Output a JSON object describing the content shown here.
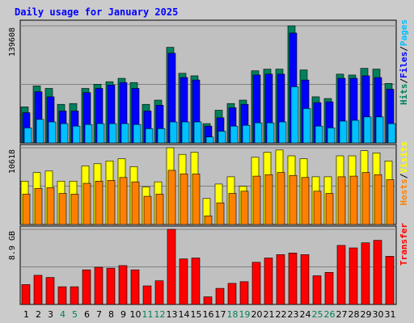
{
  "chart_data": {
    "title": "Daily usage for January 2025",
    "days": [
      "1",
      "2",
      "3",
      "4",
      "5",
      "6",
      "7",
      "8",
      "9",
      "10",
      "11",
      "12",
      "13",
      "14",
      "15",
      "16",
      "17",
      "18",
      "19",
      "20",
      "21",
      "22",
      "23",
      "24",
      "25",
      "26",
      "27",
      "28",
      "29",
      "30",
      "31"
    ],
    "weekend_days": [
      "4",
      "5",
      "11",
      "12",
      "18",
      "19",
      "25",
      "26"
    ],
    "colors": {
      "hits": "#00805c",
      "files": "#0000ff",
      "pages": "#00c0ff",
      "visits": "#ffff00",
      "hosts": "#ff8000",
      "transfer": "#ff0000",
      "weekday_label": "#000000",
      "weekend_label": "#00805c",
      "background": "#cbcbcb",
      "panel_background": "#c0c0c0"
    },
    "panels": [
      {
        "type": "bar",
        "axis_label": "139608",
        "axis_max": 139608,
        "side_labels": [
          {
            "text": "Hits",
            "color": "#00805c"
          },
          {
            "text": "/",
            "color": "#000000"
          },
          {
            "text": "Files",
            "color": "#0000ff"
          },
          {
            "text": "/",
            "color": "#000000"
          },
          {
            "text": "Pages",
            "color": "#00c0ff"
          }
        ],
        "series": [
          {
            "name": "Hits",
            "color": "#00805c",
            "values": [
              43000,
              68000,
              65000,
              46000,
              47000,
              65000,
              70000,
              73000,
              77000,
              72000,
              46000,
              51000,
              114000,
              83000,
              80000,
              23000,
              39000,
              47000,
              51000,
              86000,
              88000,
              88000,
              139608,
              87000,
              55000,
              53000,
              82000,
              81000,
              89000,
              88000,
              71000
            ]
          },
          {
            "name": "Files",
            "color": "#0000ff",
            "values": [
              36000,
              61000,
              55000,
              38000,
              38000,
              60000,
              65000,
              69000,
              72000,
              65000,
              38000,
              45000,
              107000,
              78000,
              75000,
              20000,
              30000,
              42000,
              46000,
              81000,
              82000,
              82000,
              131000,
              75000,
              48000,
              49000,
              77000,
              77000,
              80000,
              78000,
              64000
            ]
          },
          {
            "name": "Pages",
            "color": "#00c0ff",
            "values": [
              18000,
              28000,
              25000,
              23000,
              20000,
              22000,
              23000,
              23000,
              23000,
              22000,
              17000,
              17000,
              25000,
              25000,
              25000,
              7000,
              14000,
              20000,
              21000,
              24000,
              24000,
              25000,
              67000,
              41000,
              20000,
              18000,
              26000,
              27000,
              31000,
              31000,
              23000
            ]
          }
        ]
      },
      {
        "type": "bar",
        "axis_label": "10618",
        "axis_max": 10618,
        "side_labels": [
          {
            "text": "Hosts",
            "color": "#ff8000"
          },
          {
            "text": "/",
            "color": "#000000"
          },
          {
            "text": "Visits",
            "color": "#ffff00"
          }
        ],
        "series": [
          {
            "name": "Visits",
            "color": "#ffff00",
            "values": [
              6000,
              7200,
              7400,
              6000,
              6000,
              8100,
              8400,
              8800,
              9100,
              8000,
              5200,
              5900,
              10618,
              9700,
              10000,
              3600,
              5600,
              6600,
              5300,
              9300,
              10000,
              10300,
              9500,
              9100,
              6600,
              6600,
              9500,
              9500,
              10200,
              9900,
              8800
            ]
          },
          {
            "name": "Hosts",
            "color": "#ff8000",
            "values": [
              4200,
              5000,
              5100,
              4300,
              4200,
              5700,
              6000,
              6100,
              6500,
              5900,
              3900,
              4200,
              7500,
              7000,
              7000,
              1200,
              3000,
              4300,
              4600,
              6700,
              6900,
              7200,
              6800,
              6500,
              4600,
              4300,
              6600,
              6700,
              7200,
              6900,
              6200
            ]
          }
        ]
      },
      {
        "type": "bar",
        "axis_label": "8.9 GB",
        "axis_max": 8.9,
        "axis_unit": "GB",
        "side_labels": [
          {
            "text": "Transfer",
            "color": "#ff0000"
          }
        ],
        "series": [
          {
            "name": "Transfer",
            "color": "#ff0000",
            "values": [
              2.35,
              3.45,
              3.2,
              2.1,
              2.1,
              4.1,
              4.4,
              4.3,
              4.6,
              4.1,
              2.2,
              2.8,
              8.9,
              5.4,
              5.5,
              0.9,
              1.9,
              2.5,
              2.7,
              5.0,
              5.5,
              5.9,
              6.1,
              5.9,
              3.4,
              3.8,
              7.0,
              6.7,
              7.3,
              7.6,
              5.7
            ]
          }
        ]
      }
    ]
  }
}
